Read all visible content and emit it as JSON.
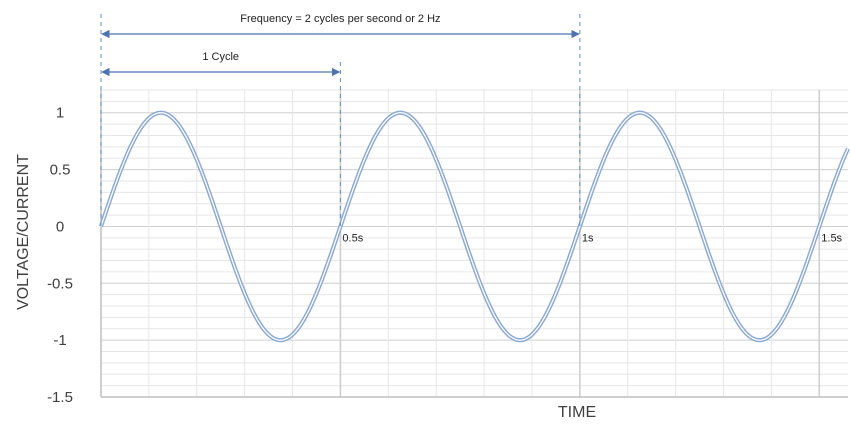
{
  "chart_data": {
    "type": "line",
    "xlabel": "TIME",
    "ylabel": "VOLTAGE/CURRENT",
    "xlim": [
      0,
      1.56
    ],
    "ylim": [
      -1.5,
      1.2
    ],
    "yticks": [
      1,
      0.5,
      0,
      -0.5,
      -1,
      -1.5
    ],
    "ytick_labels": [
      "1",
      "0.5",
      "0",
      "-0.5",
      "-1",
      "-1.5"
    ],
    "grid": true,
    "series": [
      {
        "frequency_hz": 2,
        "amplitude": 1,
        "x_start": 0,
        "x_end": 1.56,
        "color": "#8aa9d6"
      }
    ],
    "time_markers": [
      {
        "x": 0.5,
        "label": "0.5s"
      },
      {
        "x": 1.0,
        "label": "1s"
      },
      {
        "x": 1.5,
        "label": "1.5s"
      }
    ],
    "annotations": [
      {
        "text": "Frequency = 2 cycles per second or 2 Hz",
        "from": 0,
        "to": 1.0
      },
      {
        "text": "1 Cycle",
        "from": 0,
        "to": 0.5
      }
    ]
  },
  "colors": {
    "wave": "#8aa9d6",
    "arrow": "#4a73b3",
    "guide": "#5b8fc9",
    "grid_minor": "#e6e6e6",
    "grid_major": "#cfcfcf",
    "axis": "#bfbfbf"
  }
}
